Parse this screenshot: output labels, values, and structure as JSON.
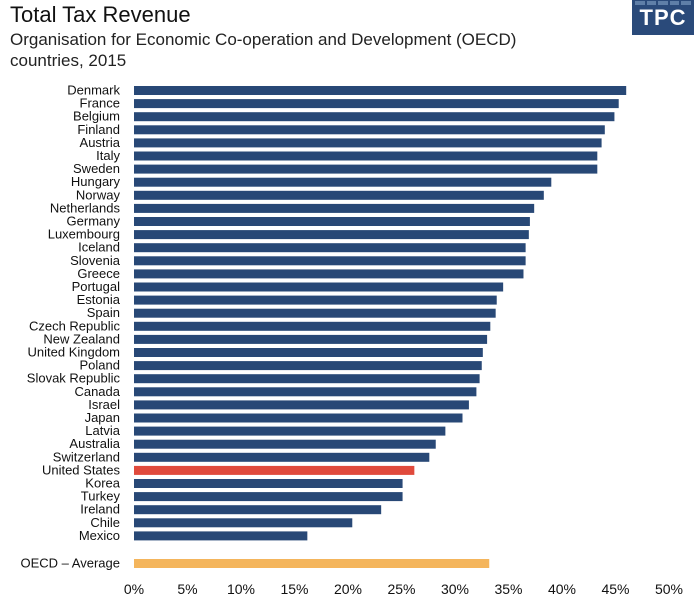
{
  "header": {
    "title": "Total Tax Revenue",
    "subtitle_line1": "Organisation for Economic Co-operation and Development (OECD)",
    "subtitle_line2": "countries, 2015"
  },
  "logo": {
    "text": "TPC"
  },
  "colors": {
    "bar": "#284876",
    "highlight": "#e04a3c",
    "average": "#f4b55c",
    "logo": "#2a4a7a"
  },
  "chart_data": {
    "type": "bar",
    "orientation": "horizontal",
    "title": "Total Tax Revenue",
    "categories": [
      "Denmark",
      "France",
      "Belgium",
      "Finland",
      "Austria",
      "Italy",
      "Sweden",
      "Hungary",
      "Norway",
      "Netherlands",
      "Germany",
      "Luxembourg",
      "Iceland",
      "Slovenia",
      "Greece",
      "Portugal",
      "Estonia",
      "Spain",
      "Czech Republic",
      "New Zealand",
      "United Kingdom",
      "Poland",
      "Slovak Republic",
      "Canada",
      "Israel",
      "Japan",
      "Latvia",
      "Australia",
      "Switzerland",
      "United States",
      "Korea",
      "Turkey",
      "Ireland",
      "Chile",
      "Mexico"
    ],
    "values": [
      46.0,
      45.3,
      44.9,
      44.0,
      43.7,
      43.3,
      43.3,
      39.0,
      38.3,
      37.4,
      37.0,
      36.9,
      36.6,
      36.6,
      36.4,
      34.5,
      33.9,
      33.8,
      33.3,
      33.0,
      32.6,
      32.5,
      32.3,
      32.0,
      31.3,
      30.7,
      29.1,
      28.2,
      27.6,
      26.2,
      25.1,
      25.1,
      23.1,
      20.4,
      16.2
    ],
    "highlight_category": "United States",
    "average": {
      "label": "OECD – Average",
      "value": 33.2
    },
    "xlim": [
      0,
      50
    ],
    "xticks": [
      "0%",
      "5%",
      "10%",
      "15%",
      "20%",
      "25%",
      "30%",
      "35%",
      "40%",
      "45%",
      "50%"
    ],
    "grid": false
  }
}
